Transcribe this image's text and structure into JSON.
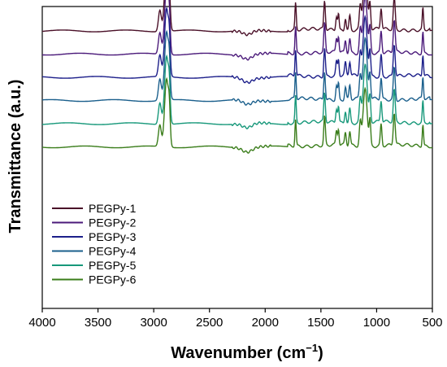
{
  "chart_data": {
    "type": "line",
    "title": "",
    "xlabel": "Wavenumber (cm",
    "xlabel_superscript": "−1",
    "xlabel_close": ")",
    "ylabel": "Transmittance (a.u.)",
    "xlim": [
      4000,
      500
    ],
    "x_reversed": true,
    "x_ticks": [
      "4000",
      "3500",
      "3000",
      "2500",
      "2000",
      "1500",
      "1000",
      "500"
    ],
    "x_tick_values": [
      4000,
      3500,
      3000,
      2500,
      2000,
      1500,
      1000,
      500
    ],
    "y_ticks_shown": false,
    "grid": false,
    "legend_position": "bottom-left",
    "series": [
      {
        "name": "PEGPy-1",
        "color": "#4a1028",
        "baseline": 0.0
      },
      {
        "name": "PEGPy-2",
        "color": "#4b1a7a",
        "baseline": 1.0
      },
      {
        "name": "PEGPy-3",
        "color": "#1c1f8a",
        "baseline": 2.0
      },
      {
        "name": "PEGPy-4",
        "color": "#1a5f8c",
        "baseline": 3.0
      },
      {
        "name": "PEGPy-5",
        "color": "#17987a",
        "baseline": 4.0
      },
      {
        "name": "PEGPy-6",
        "color": "#3a7d1a",
        "baseline": 5.0
      }
    ],
    "common_peaks": [
      {
        "x": 2885,
        "depth": 3.8,
        "width": 25
      },
      {
        "x": 2945,
        "depth": 1.2,
        "width": 18
      },
      {
        "x": 2860,
        "depth": 1.5,
        "width": 12
      },
      {
        "x": 1727,
        "depth": 1.5,
        "width": 8
      },
      {
        "x": 1467,
        "depth": 1.6,
        "width": 10
      },
      {
        "x": 1360,
        "depth": 0.8,
        "width": 10
      },
      {
        "x": 1342,
        "depth": 0.9,
        "width": 8
      },
      {
        "x": 1280,
        "depth": 0.7,
        "width": 10
      },
      {
        "x": 1241,
        "depth": 0.8,
        "width": 10
      },
      {
        "x": 1147,
        "depth": 1.3,
        "width": 12
      },
      {
        "x": 1103,
        "depth": 3.3,
        "width": 25
      },
      {
        "x": 1060,
        "depth": 1.4,
        "width": 10
      },
      {
        "x": 960,
        "depth": 1.2,
        "width": 10
      },
      {
        "x": 842,
        "depth": 1.8,
        "width": 12
      },
      {
        "x": 585,
        "depth": 1.2,
        "width": 8
      }
    ]
  }
}
